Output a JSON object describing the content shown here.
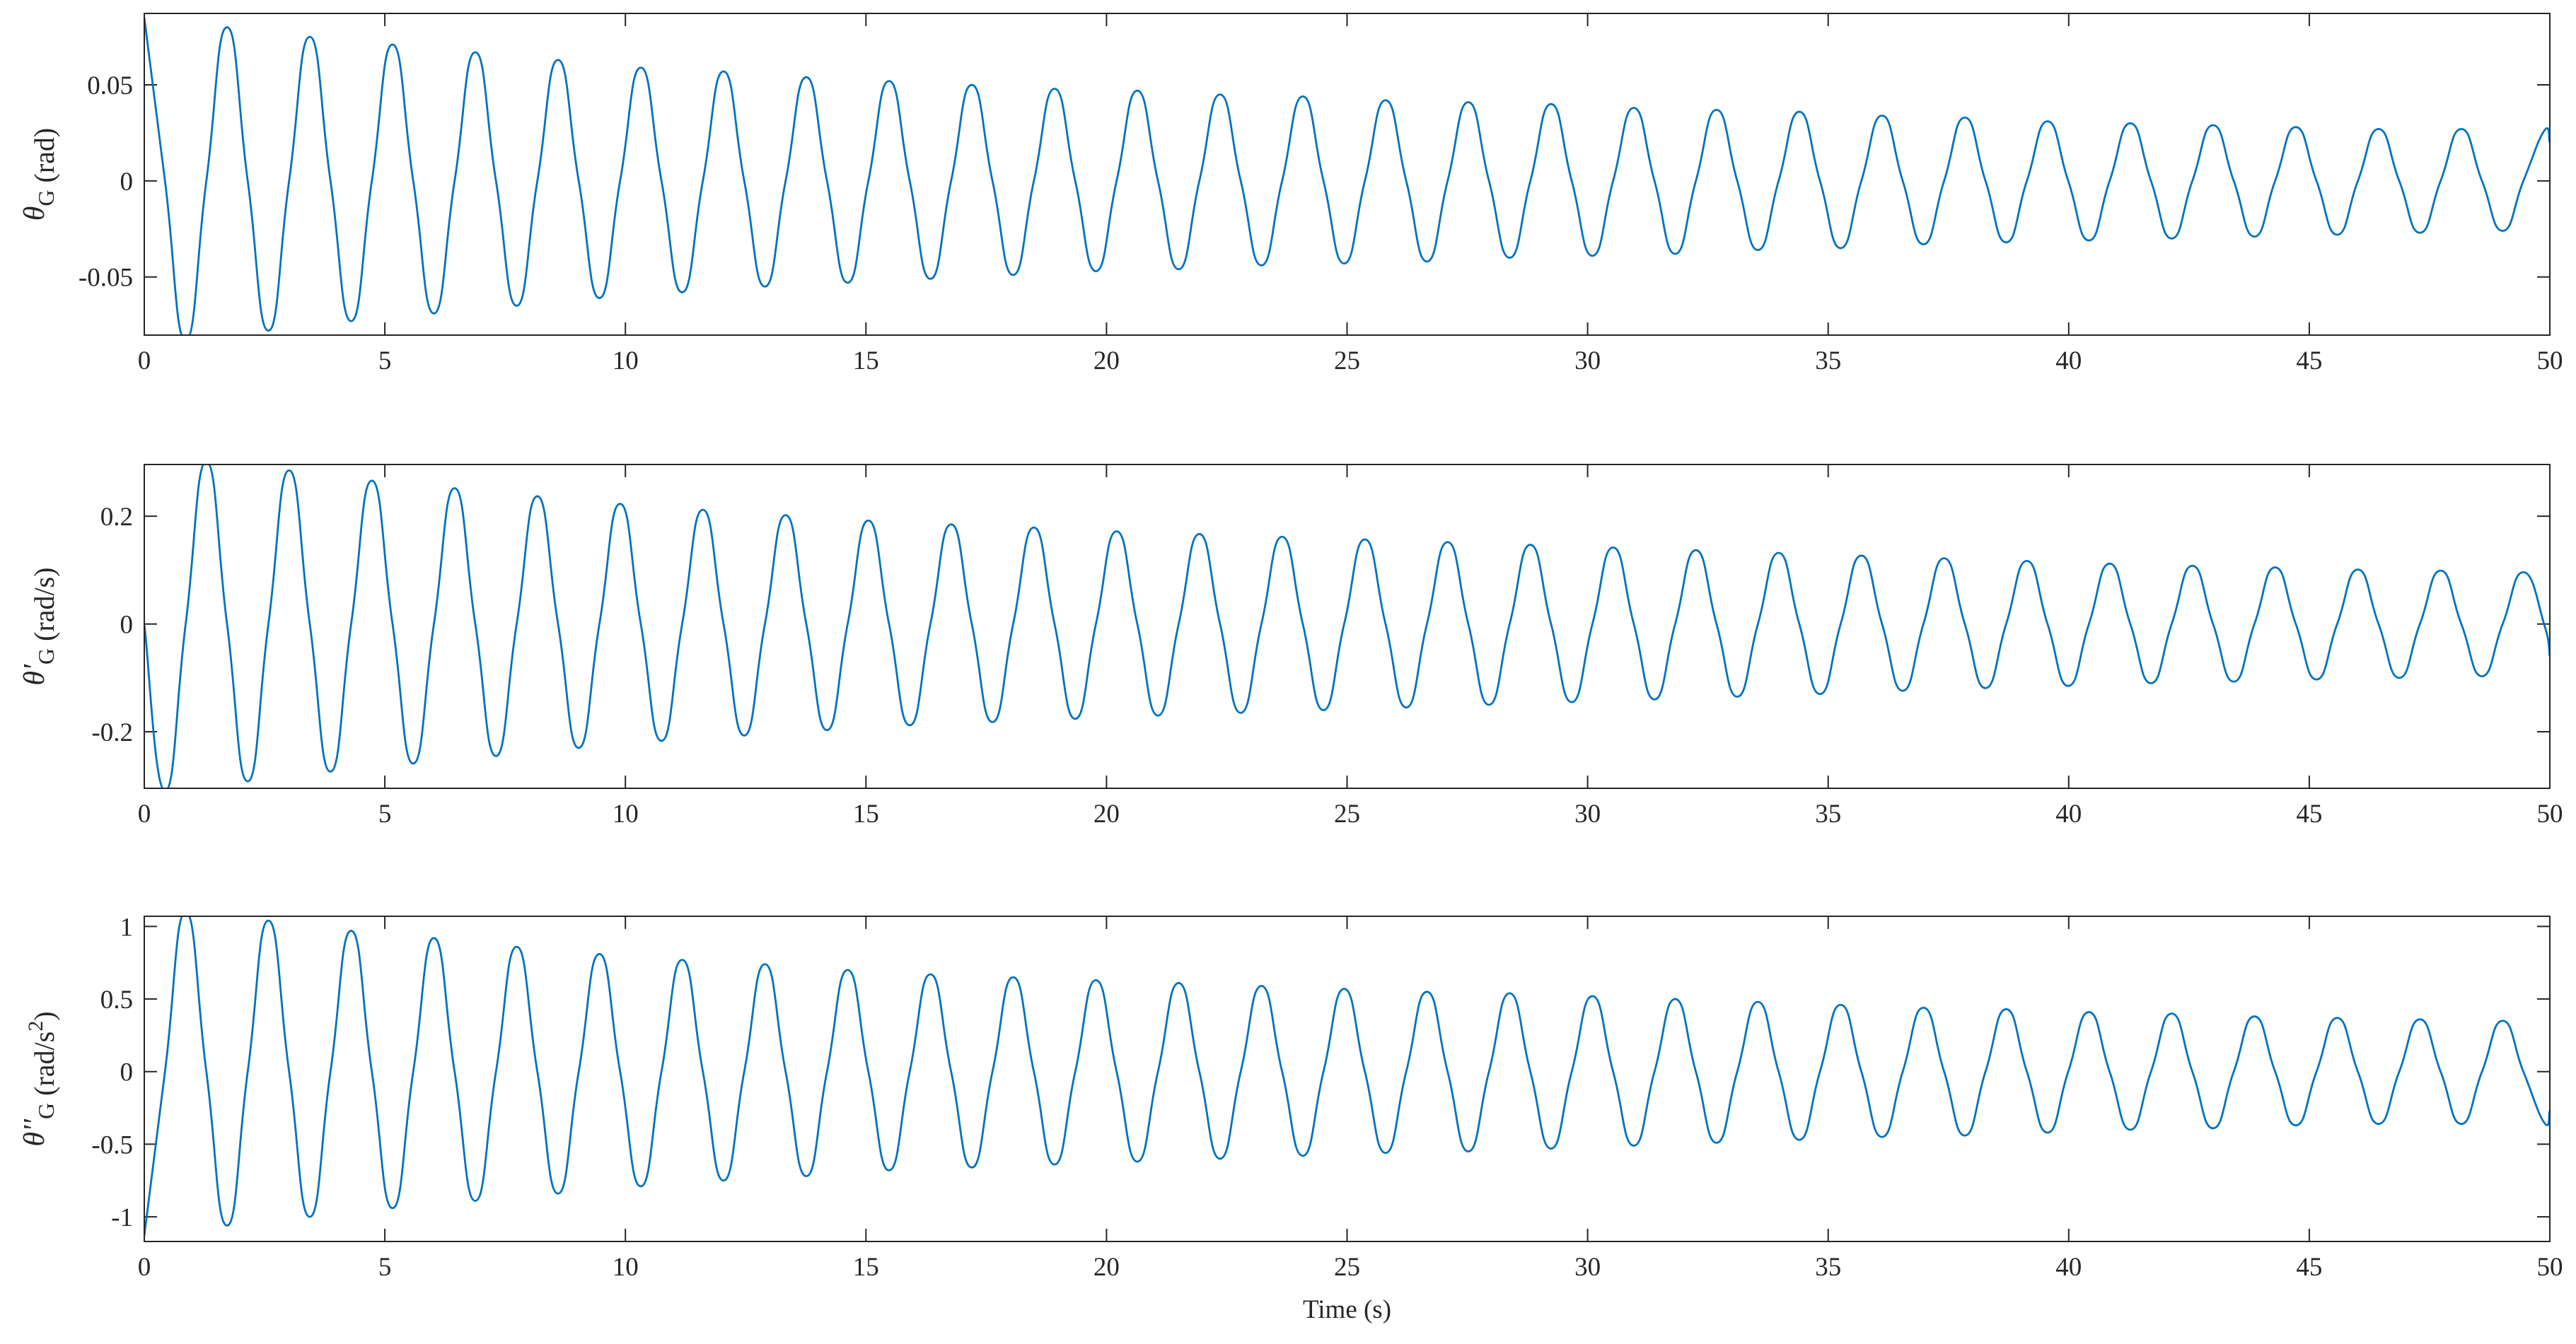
{
  "chart_data": [
    {
      "type": "line",
      "color": "#0072BD",
      "ylabel": {
        "symbol": "θ",
        "subscript": "G",
        "unit": "(rad)"
      },
      "xlim": [
        0,
        50
      ],
      "xticks": [
        0,
        5,
        10,
        15,
        20,
        25,
        30,
        35,
        40,
        45,
        50
      ],
      "ylim": [
        -0.0803,
        0.0872
      ],
      "yticks": [
        -0.05,
        0,
        0.05
      ],
      "x": [
        0,
        0.43,
        0.86,
        1.29,
        1.72,
        2.15,
        2.58,
        3.01,
        3.44,
        3.87,
        4.3,
        4.73,
        5.16,
        5.59,
        6.02,
        6.45,
        6.88,
        7.31,
        7.74,
        8.17,
        8.6,
        9.03,
        9.46,
        9.89,
        10.32,
        10.75,
        11.18,
        11.61,
        12.04,
        12.47,
        12.9,
        13.33,
        13.76,
        14.19,
        14.62,
        15.05,
        15.48,
        15.91,
        16.34,
        16.77,
        17.2,
        17.63,
        18.06,
        18.49,
        18.92,
        19.35,
        19.78,
        20.21,
        20.64,
        21.07,
        21.5,
        21.93,
        22.36,
        22.79,
        23.22,
        23.65,
        24.08,
        24.51,
        24.94,
        25.37,
        25.8,
        26.23,
        26.66,
        27.09,
        27.52,
        27.95,
        28.38,
        28.81,
        29.24,
        29.67,
        30.1,
        30.53,
        30.96,
        31.39,
        31.82,
        32.25,
        32.68,
        33.11,
        33.54,
        33.97,
        34.4,
        34.83,
        35.26,
        35.69,
        36.12,
        36.55,
        36.98,
        37.41,
        37.84,
        38.27,
        38.7,
        39.13,
        39.56,
        39.99,
        40.42,
        40.85,
        41.28,
        41.71,
        42.14,
        42.57,
        43,
        43.43,
        43.86,
        44.29,
        44.72,
        45.15,
        45.58,
        46.01,
        46.44,
        46.87,
        47.3,
        47.73,
        48.16,
        48.59,
        49.02,
        49.45,
        49.88,
        50
      ],
      "values": [
        0.085,
        0,
        -0.083,
        0,
        0.08,
        0,
        -0.078,
        0,
        0.075,
        0,
        -0.073,
        0,
        0.071,
        0,
        -0.069,
        0,
        0.067,
        0,
        -0.065,
        0,
        0.063,
        0,
        -0.061,
        0,
        0.059,
        0,
        -0.058,
        0,
        0.057,
        0,
        -0.055,
        0,
        0.054,
        0,
        -0.053,
        0,
        0.052,
        0,
        -0.051,
        0,
        0.05,
        0,
        -0.049,
        0,
        0.048,
        0,
        -0.047,
        0,
        0.047,
        0,
        -0.046,
        0,
        0.045,
        0,
        -0.044,
        0,
        0.044,
        0,
        -0.043,
        0,
        0.042,
        0,
        -0.042,
        0,
        0.041,
        0,
        -0.04,
        0,
        0.04,
        0,
        -0.039,
        0,
        0.038,
        0,
        -0.038,
        0,
        0.037,
        0,
        -0.036,
        0,
        0.036,
        0,
        -0.035,
        0,
        0.034,
        0,
        -0.033,
        0,
        0.033,
        0,
        -0.032,
        0,
        0.031,
        0,
        -0.031,
        0,
        0.03,
        0,
        -0.03,
        0,
        0.029,
        0,
        -0.029,
        0,
        0.028,
        0,
        -0.028,
        0,
        0.027,
        0,
        -0.027,
        0,
        0.027,
        0,
        -0.026,
        0,
        0.026,
        0.02
      ]
    },
    {
      "type": "line",
      "color": "#0072BD",
      "ylabel": {
        "symbol": "θ'",
        "subscript": "G",
        "unit": "(rad/s)"
      },
      "xlim": [
        0,
        50
      ],
      "xticks": [
        0,
        5,
        10,
        15,
        20,
        25,
        30,
        35,
        40,
        45,
        50
      ],
      "ylim": [
        -0.305,
        0.296
      ],
      "yticks": [
        -0.2,
        0,
        0.2
      ],
      "x": [
        0,
        0.43,
        0.86,
        1.29,
        1.72,
        2.15,
        2.58,
        3.01,
        3.44,
        3.87,
        4.3,
        4.73,
        5.16,
        5.59,
        6.02,
        6.45,
        6.88,
        7.31,
        7.74,
        8.17,
        8.6,
        9.03,
        9.46,
        9.89,
        10.32,
        10.75,
        11.18,
        11.61,
        12.04,
        12.47,
        12.9,
        13.33,
        13.76,
        14.19,
        14.62,
        15.05,
        15.48,
        15.91,
        16.34,
        16.77,
        17.2,
        17.63,
        18.06,
        18.49,
        18.92,
        19.35,
        19.78,
        20.21,
        20.64,
        21.07,
        21.5,
        21.93,
        22.36,
        22.79,
        23.22,
        23.65,
        24.08,
        24.51,
        24.94,
        25.37,
        25.8,
        26.23,
        26.66,
        27.09,
        27.52,
        27.95,
        28.38,
        28.81,
        29.24,
        29.67,
        30.1,
        30.53,
        30.96,
        31.39,
        31.82,
        32.25,
        32.68,
        33.11,
        33.54,
        33.97,
        34.4,
        34.83,
        35.26,
        35.69,
        36.12,
        36.55,
        36.98,
        37.41,
        37.84,
        38.27,
        38.7,
        39.13,
        39.56,
        39.99,
        40.42,
        40.85,
        41.28,
        41.71,
        42.14,
        42.57,
        43,
        43.43,
        43.86,
        44.29,
        44.72,
        45.15,
        45.58,
        46.01,
        46.44,
        46.87,
        47.3,
        47.73,
        48.16,
        48.59,
        49.02,
        49.45,
        49.88,
        50
      ],
      "values": [
        0,
        -0.31,
        0,
        0.301,
        0,
        -0.292,
        0,
        0.285,
        0,
        -0.274,
        0,
        0.266,
        0,
        -0.259,
        0,
        0.252,
        0,
        -0.245,
        0,
        0.237,
        0,
        -0.23,
        0,
        0.223,
        0,
        -0.217,
        0,
        0.212,
        0,
        -0.207,
        0,
        0.202,
        0,
        -0.197,
        0,
        0.192,
        0,
        -0.188,
        0,
        0.185,
        0,
        -0.182,
        0,
        0.179,
        0,
        -0.176,
        0,
        0.172,
        0,
        -0.17,
        0,
        0.167,
        0,
        -0.165,
        0,
        0.162,
        0,
        -0.16,
        0,
        0.157,
        0,
        -0.155,
        0,
        0.152,
        0,
        -0.15,
        0,
        0.147,
        0,
        -0.145,
        0,
        0.142,
        0,
        -0.14,
        0,
        0.137,
        0,
        -0.135,
        0,
        0.132,
        0,
        -0.13,
        0,
        0.127,
        0,
        -0.124,
        0,
        0.122,
        0,
        -0.119,
        0,
        0.117,
        0,
        -0.115,
        0,
        0.112,
        0,
        -0.11,
        0,
        0.108,
        0,
        -0.107,
        0,
        0.105,
        0,
        -0.103,
        0,
        0.101,
        0,
        -0.1,
        0,
        0.099,
        0,
        -0.097,
        0,
        0.096,
        0,
        -0.06
      ]
    },
    {
      "type": "line",
      "color": "#0072BD",
      "ylabel": {
        "symbol": "θ''",
        "subscript": "G",
        "unit": "(rad/s",
        "superscript": "2",
        "unit_end": ")"
      },
      "xlabel": "Time (s)",
      "xlim": [
        0,
        50
      ],
      "xticks": [
        0,
        5,
        10,
        15,
        20,
        25,
        30,
        35,
        40,
        45,
        50
      ],
      "ylim": [
        -1.17,
        1.07
      ],
      "yticks": [
        -1,
        -0.5,
        0,
        0.5,
        1
      ],
      "x": [
        0,
        0.43,
        0.86,
        1.29,
        1.72,
        2.15,
        2.58,
        3.01,
        3.44,
        3.87,
        4.3,
        4.73,
        5.16,
        5.59,
        6.02,
        6.45,
        6.88,
        7.31,
        7.74,
        8.17,
        8.6,
        9.03,
        9.46,
        9.89,
        10.32,
        10.75,
        11.18,
        11.61,
        12.04,
        12.47,
        12.9,
        13.33,
        13.76,
        14.19,
        14.62,
        15.05,
        15.48,
        15.91,
        16.34,
        16.77,
        17.2,
        17.63,
        18.06,
        18.49,
        18.92,
        19.35,
        19.78,
        20.21,
        20.64,
        21.07,
        21.5,
        21.93,
        22.36,
        22.79,
        23.22,
        23.65,
        24.08,
        24.51,
        24.94,
        25.37,
        25.8,
        26.23,
        26.66,
        27.09,
        27.52,
        27.95,
        28.38,
        28.81,
        29.24,
        29.67,
        30.1,
        30.53,
        30.96,
        31.39,
        31.82,
        32.25,
        32.68,
        33.11,
        33.54,
        33.97,
        34.4,
        34.83,
        35.26,
        35.69,
        36.12,
        36.55,
        36.98,
        37.41,
        37.84,
        38.27,
        38.7,
        39.13,
        39.56,
        39.99,
        40.42,
        40.85,
        41.28,
        41.71,
        42.14,
        42.57,
        43,
        43.43,
        43.86,
        44.29,
        44.72,
        45.15,
        45.58,
        46.01,
        46.44,
        46.87,
        47.3,
        47.73,
        48.16,
        48.59,
        49.02,
        49.45,
        49.88,
        50
      ],
      "values": [
        -1.13,
        0,
        1.1,
        0,
        -1.06,
        0,
        1.04,
        0,
        -1.0,
        0,
        0.97,
        0,
        -0.94,
        0,
        0.92,
        0,
        -0.89,
        0,
        0.86,
        0,
        -0.84,
        0,
        0.81,
        0,
        -0.79,
        0,
        0.77,
        0,
        -0.75,
        0,
        0.74,
        0,
        -0.72,
        0,
        0.7,
        0,
        -0.68,
        0,
        0.67,
        0,
        -0.66,
        0,
        0.65,
        0,
        -0.64,
        0,
        0.63,
        0,
        -0.62,
        0,
        0.61,
        0,
        -0.6,
        0,
        0.59,
        0,
        -0.58,
        0,
        0.57,
        0,
        -0.56,
        0,
        0.55,
        0,
        -0.55,
        0,
        0.54,
        0,
        -0.53,
        0,
        0.52,
        0,
        -0.51,
        0,
        0.5,
        0,
        -0.49,
        0,
        0.48,
        0,
        -0.47,
        0,
        0.46,
        0,
        -0.45,
        0,
        0.44,
        0,
        -0.44,
        0,
        0.43,
        0,
        -0.42,
        0,
        0.41,
        0,
        -0.4,
        0,
        0.4,
        0,
        -0.39,
        0,
        0.38,
        0,
        -0.37,
        0,
        0.37,
        0,
        -0.36,
        0,
        0.36,
        0,
        -0.36,
        0,
        0.35,
        0,
        -0.35,
        -0.27
      ]
    }
  ]
}
